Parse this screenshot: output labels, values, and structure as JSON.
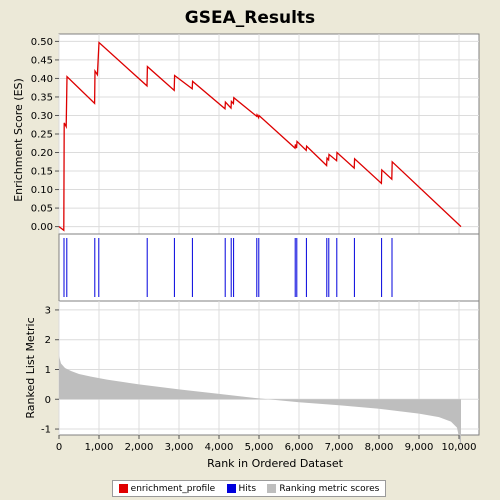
{
  "chart_data": {
    "type": "line",
    "title": "GSEA_Results",
    "xlabel": "Rank in Ordered Dataset",
    "xlim": [
      0,
      10500
    ],
    "x_ticks": [
      0,
      1000,
      2000,
      3000,
      4000,
      5000,
      6000,
      7000,
      8000,
      9000,
      10000
    ],
    "x_tick_labels": [
      "0",
      "1,000",
      "2,000",
      "3,000",
      "4,000",
      "5,000",
      "6,000",
      "7,000",
      "8,000",
      "9,000",
      "10,000"
    ],
    "panels": {
      "enrichment": {
        "ylabel": "Enrichment Score (ES)",
        "ylim": [
          -0.02,
          0.52
        ],
        "y_ticks": [
          0.0,
          0.05,
          0.1,
          0.15,
          0.2,
          0.25,
          0.3,
          0.35,
          0.4,
          0.45,
          0.5
        ],
        "y_tick_labels": [
          "0.00",
          "0.05",
          "0.10",
          "0.15",
          "0.20",
          "0.25",
          "0.30",
          "0.35",
          "0.40",
          "0.45",
          "0.50"
        ],
        "grid": true
      },
      "ranked_metric": {
        "ylabel": "Ranked List Metric",
        "ylim": [
          -1.2,
          3.3
        ],
        "y_ticks": [
          -1,
          0,
          1,
          2,
          3
        ],
        "y_tick_labels": [
          "-1",
          "0",
          "1",
          "2",
          "3"
        ],
        "grid": true
      }
    },
    "series": [
      {
        "name": "enrichment_profile",
        "color": "#e00000",
        "x": [
          0,
          120,
          130,
          180,
          200,
          890,
          900,
          960,
          1000,
          2200,
          2210,
          2880,
          2890,
          3330,
          3340,
          4150,
          4160,
          4300,
          4310,
          4360,
          4370,
          4940,
          4950,
          4990,
          5000,
          5900,
          5910,
          5940,
          5950,
          6180,
          6190,
          6690,
          6700,
          6740,
          6750,
          6940,
          6950,
          7380,
          7390,
          8060,
          8070,
          8320,
          8330,
          10050
        ],
        "y": [
          0.0,
          -0.01,
          0.28,
          0.27,
          0.405,
          0.333,
          0.42,
          0.41,
          0.497,
          0.38,
          0.432,
          0.368,
          0.408,
          0.372,
          0.392,
          0.318,
          0.336,
          0.32,
          0.338,
          0.332,
          0.348,
          0.298,
          0.302,
          0.294,
          0.3,
          0.212,
          0.222,
          0.212,
          0.23,
          0.206,
          0.217,
          0.165,
          0.185,
          0.18,
          0.195,
          0.178,
          0.2,
          0.158,
          0.183,
          0.117,
          0.153,
          0.128,
          0.175,
          0.0
        ]
      },
      {
        "name": "Hits",
        "color": "#0000dd",
        "x": [
          125,
          195,
          895,
          995,
          2205,
          2885,
          3335,
          4155,
          4305,
          4365,
          4945,
          4995,
          5905,
          5945,
          6185,
          6695,
          6745,
          6945,
          7385,
          8065,
          8325
        ]
      },
      {
        "name": "Ranking metric scores",
        "color": "#bebebe",
        "x": [
          0,
          50,
          150,
          300,
          500,
          800,
          1200,
          2000,
          3000,
          4000,
          5000,
          6000,
          7000,
          8000,
          9000,
          9500,
          9800,
          9950,
          10050
        ],
        "y": [
          1.45,
          1.2,
          1.05,
          0.95,
          0.85,
          0.76,
          0.66,
          0.5,
          0.33,
          0.18,
          0.03,
          -0.1,
          -0.2,
          -0.32,
          -0.48,
          -0.6,
          -0.75,
          -0.95,
          -1.6
        ]
      }
    ]
  },
  "legend": {
    "items": [
      {
        "label": "enrichment_profile",
        "color": "#e00000"
      },
      {
        "label": "Hits",
        "color": "#0000dd"
      },
      {
        "label": "Ranking metric scores",
        "color": "#bebebe"
      }
    ]
  }
}
